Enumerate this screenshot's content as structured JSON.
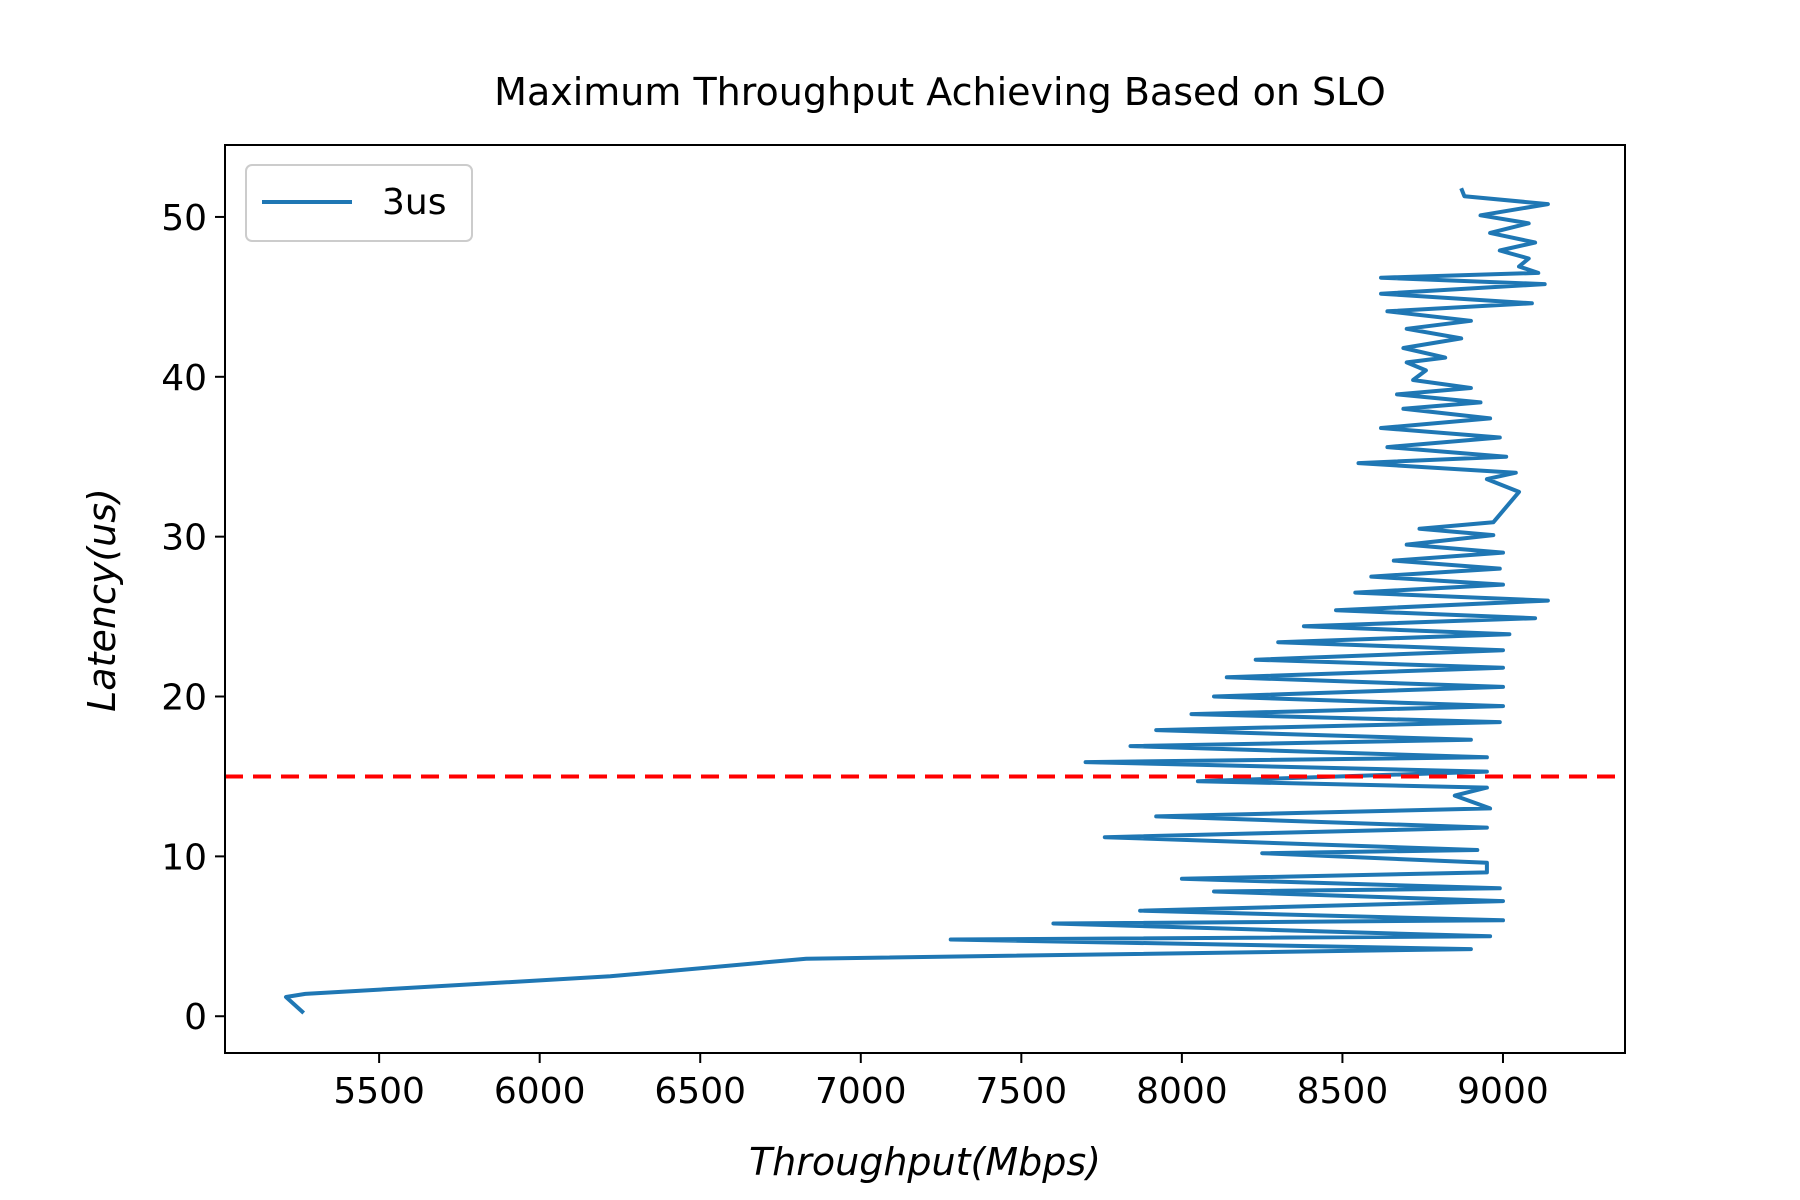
{
  "chart_data": {
    "type": "line",
    "title": "Maximum Throughput Achieving Based on SLO",
    "xlabel": "Throughput(Mbps)",
    "ylabel": "Latency(us)",
    "xlim": [
      5020,
      9380
    ],
    "ylim": [
      -2.3,
      54.5
    ],
    "xticks": [
      5500,
      6000,
      6500,
      7000,
      7500,
      8000,
      8500,
      9000
    ],
    "yticks": [
      0,
      10,
      20,
      30,
      40,
      50
    ],
    "grid": false,
    "legend_position": "top-left",
    "reference_line": {
      "y": 15,
      "color": "#ff0000",
      "style": "dashed"
    },
    "series": [
      {
        "name": "3us",
        "color": "#1f77b4",
        "points": [
          [
            5265,
            0.2
          ],
          [
            5210,
            1.2
          ],
          [
            5270,
            1.4
          ],
          [
            6220,
            2.5
          ],
          [
            6830,
            3.6
          ],
          [
            8900,
            4.2
          ],
          [
            7280,
            4.8
          ],
          [
            8960,
            5.0
          ],
          [
            7600,
            5.8
          ],
          [
            9000,
            6.0
          ],
          [
            7870,
            6.6
          ],
          [
            9000,
            7.2
          ],
          [
            8100,
            7.8
          ],
          [
            8990,
            8.0
          ],
          [
            8000,
            8.6
          ],
          [
            8950,
            9.0
          ],
          [
            8950,
            9.6
          ],
          [
            8250,
            10.2
          ],
          [
            8920,
            10.4
          ],
          [
            7760,
            11.2
          ],
          [
            8950,
            11.8
          ],
          [
            7920,
            12.5
          ],
          [
            8960,
            13.0
          ],
          [
            8850,
            13.8
          ],
          [
            8950,
            14.3
          ],
          [
            8050,
            14.7
          ],
          [
            8950,
            15.3
          ],
          [
            7700,
            15.9
          ],
          [
            8950,
            16.2
          ],
          [
            7840,
            16.9
          ],
          [
            8900,
            17.3
          ],
          [
            7920,
            17.9
          ],
          [
            8990,
            18.4
          ],
          [
            8030,
            18.9
          ],
          [
            9000,
            19.4
          ],
          [
            8100,
            20.0
          ],
          [
            9000,
            20.6
          ],
          [
            8140,
            21.2
          ],
          [
            9000,
            21.8
          ],
          [
            8230,
            22.3
          ],
          [
            9000,
            22.9
          ],
          [
            8300,
            23.4
          ],
          [
            9020,
            23.9
          ],
          [
            8380,
            24.4
          ],
          [
            9100,
            24.9
          ],
          [
            8480,
            25.4
          ],
          [
            9140,
            26.0
          ],
          [
            8540,
            26.5
          ],
          [
            9000,
            27.0
          ],
          [
            8590,
            27.5
          ],
          [
            8990,
            28.0
          ],
          [
            8660,
            28.5
          ],
          [
            9000,
            29.0
          ],
          [
            8700,
            29.5
          ],
          [
            8970,
            30.1
          ],
          [
            8740,
            30.5
          ],
          [
            8970,
            30.9
          ],
          [
            9050,
            32.8
          ],
          [
            8950,
            33.6
          ],
          [
            9040,
            34.0
          ],
          [
            8550,
            34.6
          ],
          [
            9010,
            35.0
          ],
          [
            8640,
            35.6
          ],
          [
            8990,
            36.2
          ],
          [
            8620,
            36.8
          ],
          [
            8960,
            37.4
          ],
          [
            8690,
            38.0
          ],
          [
            8930,
            38.4
          ],
          [
            8670,
            38.9
          ],
          [
            8900,
            39.3
          ],
          [
            8720,
            39.8
          ],
          [
            8760,
            40.4
          ],
          [
            8700,
            40.9
          ],
          [
            8820,
            41.2
          ],
          [
            8690,
            41.8
          ],
          [
            8870,
            42.4
          ],
          [
            8700,
            43.0
          ],
          [
            8900,
            43.5
          ],
          [
            8640,
            44.1
          ],
          [
            9090,
            44.6
          ],
          [
            8620,
            45.2
          ],
          [
            9130,
            45.8
          ],
          [
            8620,
            46.2
          ],
          [
            9110,
            46.5
          ],
          [
            9050,
            46.9
          ],
          [
            9080,
            47.4
          ],
          [
            8990,
            47.9
          ],
          [
            9100,
            48.4
          ],
          [
            8960,
            49.0
          ],
          [
            9080,
            49.6
          ],
          [
            8930,
            50.1
          ],
          [
            9140,
            50.8
          ],
          [
            8880,
            51.3
          ],
          [
            8870,
            51.8
          ]
        ]
      }
    ]
  }
}
